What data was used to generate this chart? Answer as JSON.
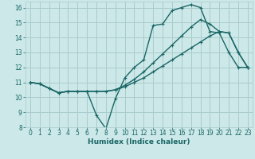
{
  "xlabel": "Humidex (Indice chaleur)",
  "xlim": [
    -0.5,
    23.5
  ],
  "ylim": [
    8,
    16.4
  ],
  "yticks": [
    8,
    9,
    10,
    11,
    12,
    13,
    14,
    15,
    16
  ],
  "xticks": [
    0,
    1,
    2,
    3,
    4,
    5,
    6,
    7,
    8,
    9,
    10,
    11,
    12,
    13,
    14,
    15,
    16,
    17,
    18,
    19,
    20,
    21,
    22,
    23
  ],
  "bg_color": "#cce8e8",
  "grid_color": "#aacccc",
  "line_color": "#1a6666",
  "line1_x": [
    0,
    1,
    2,
    3,
    4,
    5,
    6,
    7,
    8,
    9,
    10,
    11,
    12,
    13,
    14,
    15,
    16,
    17,
    18,
    19,
    20,
    21,
    22,
    23
  ],
  "line1_y": [
    11.0,
    10.9,
    10.6,
    10.3,
    10.4,
    10.4,
    10.4,
    8.8,
    7.9,
    9.9,
    11.3,
    12.0,
    12.5,
    14.8,
    14.9,
    15.8,
    16.0,
    16.2,
    16.0,
    14.4,
    14.3,
    13.0,
    12.0,
    12.0
  ],
  "line2_x": [
    0,
    1,
    2,
    3,
    4,
    5,
    6,
    7,
    8,
    9,
    10,
    11,
    12,
    13,
    14,
    15,
    16,
    17,
    18,
    19,
    20,
    21,
    22,
    23
  ],
  "line2_y": [
    11.0,
    10.9,
    10.6,
    10.3,
    10.4,
    10.4,
    10.4,
    10.4,
    10.4,
    10.5,
    10.7,
    11.0,
    11.3,
    11.7,
    12.1,
    12.5,
    12.9,
    13.3,
    13.7,
    14.1,
    14.4,
    14.3,
    13.0,
    12.0
  ],
  "line3_x": [
    0,
    1,
    2,
    3,
    4,
    5,
    6,
    7,
    8,
    9,
    10,
    11,
    12,
    13,
    14,
    15,
    16,
    17,
    18,
    19,
    20,
    21,
    22,
    23
  ],
  "line3_y": [
    11.0,
    10.9,
    10.6,
    10.3,
    10.4,
    10.4,
    10.4,
    10.4,
    10.4,
    10.5,
    10.8,
    11.2,
    11.7,
    12.3,
    12.9,
    13.5,
    14.1,
    14.7,
    15.2,
    14.9,
    14.4,
    14.3,
    13.0,
    12.0
  ],
  "tick_fontsize": 5.5,
  "label_fontsize": 6.5
}
